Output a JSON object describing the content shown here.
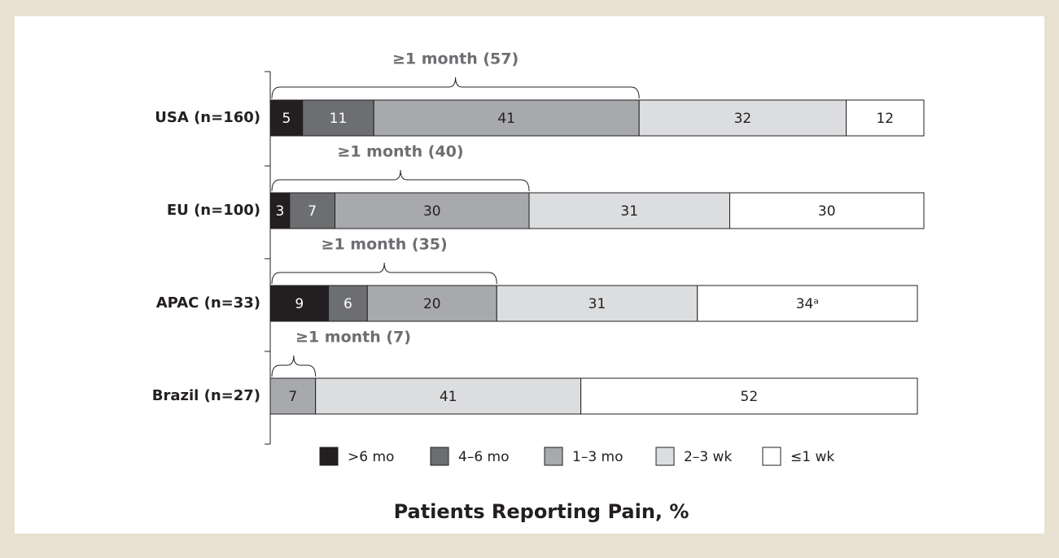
{
  "chart_data": {
    "type": "stacked-bar-horizontal",
    "categories": [
      "USA (n=160)",
      "EU (n=100)",
      "APAC (n=33)",
      "Brazil (n=27)"
    ],
    "series": [
      {
        "name": ">6 mo",
        "color": "#231f20",
        "values": [
          5,
          3,
          9,
          null
        ]
      },
      {
        "name": "4–6 mo",
        "color": "#6d6e71",
        "values": [
          11,
          7,
          6,
          null
        ]
      },
      {
        "name": "1–3 mo",
        "color": "#a7a9ac",
        "values": [
          41,
          30,
          20,
          7
        ]
      },
      {
        "name": "2–3 wk",
        "color": "#dcdddf",
        "values": [
          32,
          31,
          31,
          41
        ]
      },
      {
        "name": "≤1 wk",
        "color": "#ffffff",
        "values": [
          12,
          30,
          34,
          52
        ],
        "value_labels": [
          "12",
          "30",
          "34ᵃ",
          "52"
        ]
      }
    ],
    "brackets": [
      "≥1 month (57)",
      "≥1 month (40)",
      "≥1 month (35)",
      "≥1 month (7)"
    ],
    "xlim": [
      0,
      101
    ],
    "xlabel": "Patients Reporting Pain, %",
    "legend": "bottom"
  }
}
